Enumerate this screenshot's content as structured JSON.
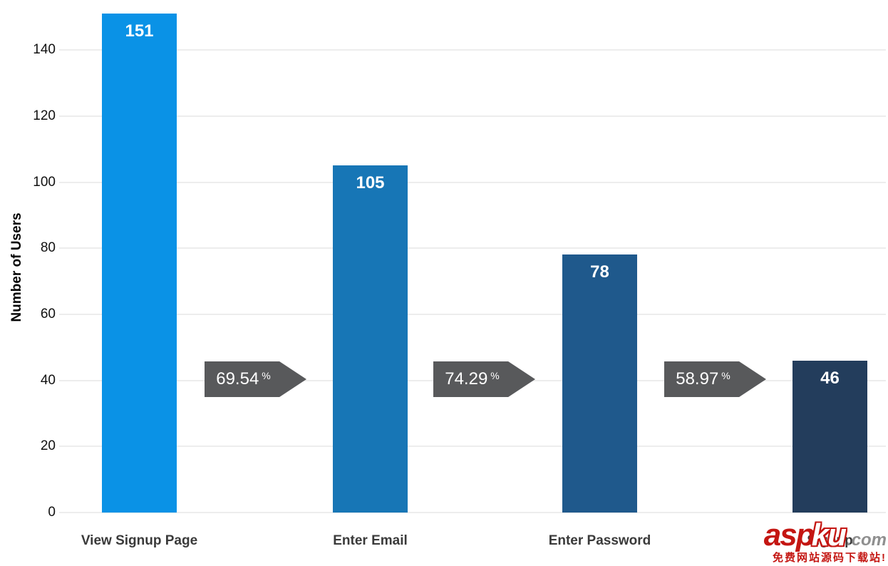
{
  "chart_data": {
    "type": "bar",
    "title": "",
    "xlabel": "",
    "ylabel": "Number of Users",
    "categories": [
      "View Signup Page",
      "Enter Email",
      "Enter Password",
      "Signup"
    ],
    "values": [
      151,
      105,
      78,
      46
    ],
    "bar_colors": [
      "#0a92e6",
      "#1776b6",
      "#1f598c",
      "#233d5c"
    ],
    "value_label_color": "#ffffff",
    "yticks": [
      0,
      20,
      40,
      60,
      80,
      100,
      120,
      140
    ],
    "ylim": [
      0,
      155
    ],
    "grid": "on",
    "grid_color": "#ededed",
    "legend": "none",
    "conversion_arrows": {
      "color": "#58595b",
      "text_color": "#ffffff",
      "percent_sign": "%",
      "values": [
        "69.54",
        "74.29",
        "58.97"
      ]
    }
  },
  "watermark": {
    "part1": "asp",
    "part2": "ku",
    "part3": ".com",
    "tagline": "免费网站源码下载站!",
    "accent_color": "#c41612"
  }
}
